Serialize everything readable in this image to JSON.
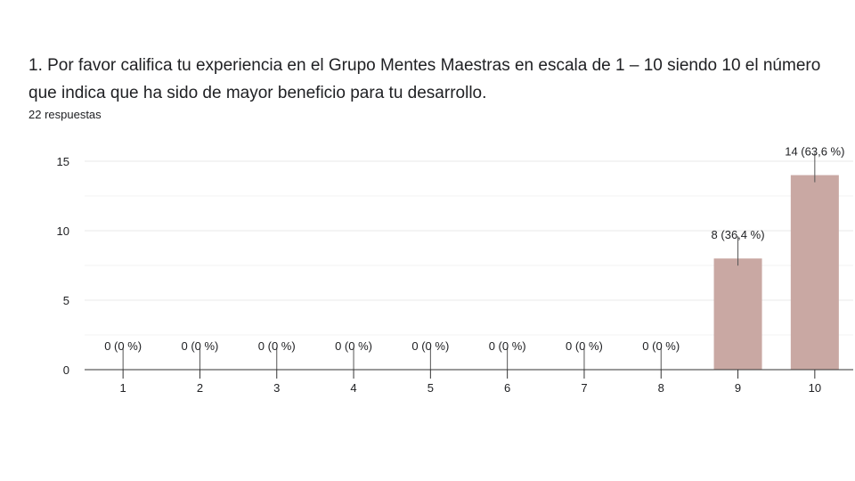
{
  "question": {
    "title": "1. Por favor califica tu experiencia en el Grupo Mentes Maestras en escala de 1 – 10 siendo 10 el número que indica que ha sido de mayor beneficio para tu desarrollo.",
    "responses_label": "22 respuestas"
  },
  "colors": {
    "bar": "#c9a8a3",
    "grid": "#e8e8e8",
    "axis": "#333333",
    "text": "#202124"
  },
  "chart_data": {
    "type": "bar",
    "categories": [
      "1",
      "2",
      "3",
      "4",
      "5",
      "6",
      "7",
      "8",
      "9",
      "10"
    ],
    "values": [
      0,
      0,
      0,
      0,
      0,
      0,
      0,
      0,
      8,
      14
    ],
    "data_labels": [
      "0 (0 %)",
      "0 (0 %)",
      "0 (0 %)",
      "0 (0 %)",
      "0 (0 %)",
      "0 (0 %)",
      "0 (0 %)",
      "0 (0 %)",
      "8 (36,4 %)",
      "14 (63,6 %)"
    ],
    "yticks": [
      0,
      5,
      10,
      15
    ],
    "ylim": [
      0,
      15
    ],
    "grid": true,
    "title": "",
    "xlabel": "",
    "ylabel": ""
  }
}
